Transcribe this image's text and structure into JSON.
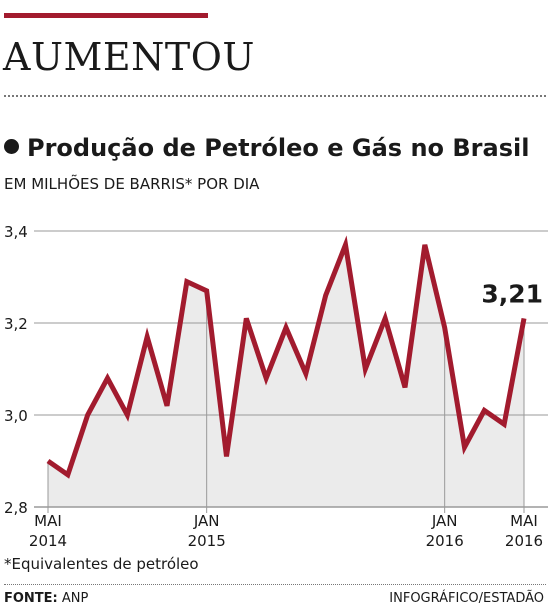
{
  "headline": "AUMENTOU",
  "chart_data": {
    "type": "area",
    "title": "Produção de Petróleo e Gás no Brasil",
    "subtitle": "EM MILHÕES DE BARRIS* POR DIA",
    "x": [
      "2014-05",
      "2014-06",
      "2014-07",
      "2014-08",
      "2014-09",
      "2014-10",
      "2014-11",
      "2014-12",
      "2015-01",
      "2015-02",
      "2015-03",
      "2015-04",
      "2015-05",
      "2015-06",
      "2015-07",
      "2015-08",
      "2015-09",
      "2015-10",
      "2015-11",
      "2015-12",
      "2016-01",
      "2016-02",
      "2016-03",
      "2016-04",
      "2016-05"
    ],
    "series": [
      {
        "values": [
          2.9,
          2.87,
          3.0,
          3.08,
          3.0,
          3.17,
          3.02,
          3.29,
          3.27,
          2.91,
          3.21,
          3.08,
          3.19,
          3.09,
          3.26,
          3.37,
          3.1,
          3.21,
          3.06,
          3.37,
          3.19,
          2.93,
          3.01,
          2.98,
          3.21
        ]
      }
    ],
    "ylim": [
      2.8,
      3.4
    ],
    "yticks": [
      "2,8",
      "3,0",
      "3,2",
      "3,4"
    ],
    "xticks": [
      {
        "label": "MAI",
        "year": "2014",
        "index": 0
      },
      {
        "label": "JAN",
        "year": "2015",
        "index": 8
      },
      {
        "label": "JAN",
        "year": "2016",
        "index": 20
      },
      {
        "label": "MAI",
        "year": "2016",
        "index": 24
      }
    ],
    "annotation": "3,21",
    "grid": true,
    "colors": {
      "line": "#a21b2e",
      "fill": "#ebebeb",
      "grid": "#9a9a9a",
      "accent": "#a21b2e"
    }
  },
  "footnote": "*Equivalentes de petróleo",
  "source_label": "FONTE:",
  "source_value": "ANP",
  "credit": "INFOGRÁFICO/ESTADÃO"
}
